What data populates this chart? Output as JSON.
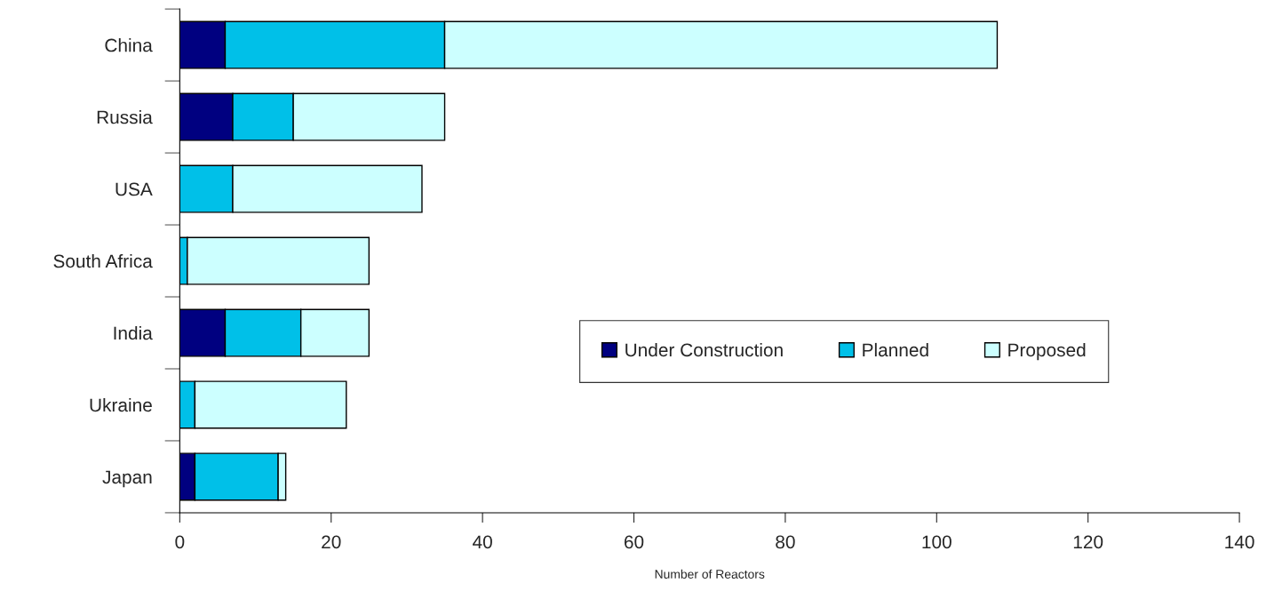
{
  "chart_data": {
    "type": "bar",
    "orientation": "horizontal",
    "stacked": true,
    "xlabel": "Number of Reactors",
    "categories": [
      "China",
      "Russia",
      "USA",
      "South Africa",
      "India",
      "Ukraine",
      "Japan"
    ],
    "series": [
      {
        "name": "Under Construction",
        "color": "#000080",
        "values": [
          6,
          7,
          0,
          0,
          6,
          0,
          2
        ]
      },
      {
        "name": "Planned",
        "color": "#00c0e8",
        "values": [
          29,
          8,
          7,
          1,
          10,
          2,
          11
        ]
      },
      {
        "name": "Proposed",
        "color": "#ccffff",
        "values": [
          73,
          20,
          25,
          24,
          9,
          20,
          1
        ]
      }
    ],
    "xlim": [
      0,
      140
    ],
    "xticks": [
      0,
      20,
      40,
      60,
      80,
      100,
      120,
      140
    ],
    "grid": false,
    "legend": "center right"
  }
}
